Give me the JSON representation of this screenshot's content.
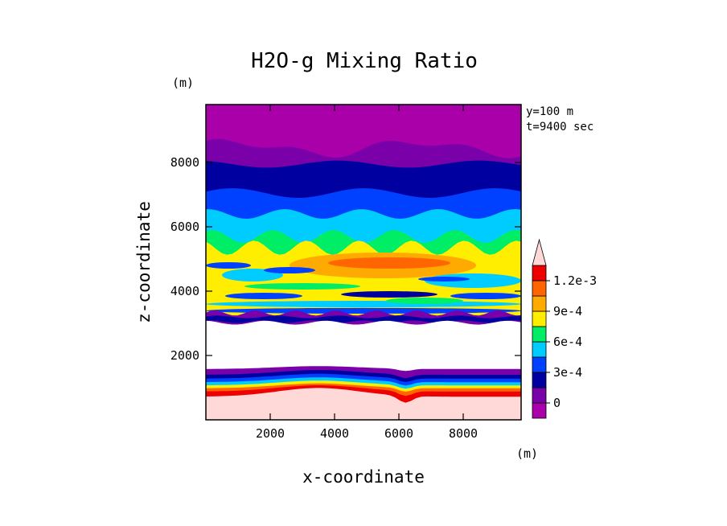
{
  "chart_data": {
    "type": "heatmap",
    "title": "H2O-g Mixing Ratio",
    "xlabel": "x-coordinate",
    "ylabel": "z-coordinate",
    "x_unit": "(m)",
    "y_unit": "(m)",
    "annotations": [
      "y=100 m",
      "t=9400 sec"
    ],
    "xlim": [
      0,
      9800
    ],
    "ylim": [
      0,
      9800
    ],
    "x_ticks": [
      2000,
      4000,
      6000,
      8000
    ],
    "x_tick_labels": [
      "2000",
      "4000",
      "6000",
      "8000"
    ],
    "y_ticks": [
      2000,
      4000,
      6000,
      8000
    ],
    "y_tick_labels": [
      "2000",
      "4000",
      "6000",
      "8000"
    ],
    "colorbar": {
      "levels": [
        0,
        0.00015,
        0.0003,
        0.00045,
        0.0006,
        0.00075,
        0.0009,
        0.00105,
        0.0012
      ],
      "colors": [
        "#aa00aa",
        "#7a00aa",
        "#0000a0",
        "#0040ff",
        "#00ccff",
        "#00ee66",
        "#ffee00",
        "#ffaa00",
        "#ff6600",
        "#ee0000",
        "#ffd8d8"
      ],
      "extend": "max",
      "tick_values": [
        0,
        0.0003,
        0.0006,
        0.0009,
        0.0012
      ],
      "tick_labels": [
        "0",
        "3e-4",
        "6e-4",
        "9e-4",
        "1.2e-3"
      ]
    },
    "regions": [
      {
        "z": [
          8300,
          9800
        ],
        "level": 0,
        "note": "upper layer"
      },
      {
        "z": [
          7900,
          8700
        ],
        "level": 1
      },
      {
        "z": [
          7000,
          8000
        ],
        "level": 2
      },
      {
        "z": [
          6300,
          7000
        ],
        "level": 3
      },
      {
        "z": [
          5500,
          6400
        ],
        "level": 4
      },
      {
        "z": [
          3300,
          5800
        ],
        "level": 6,
        "note": "mixed band"
      },
      {
        "z": [
          3000,
          3300
        ],
        "level": 1
      },
      {
        "z": [
          1500,
          3000
        ],
        "level": "none",
        "note": "blank, no data"
      },
      {
        "z": [
          1350,
          1600
        ],
        "level": 1
      },
      {
        "z": [
          1250,
          1450
        ],
        "level": 2
      },
      {
        "z": [
          700,
          1300
        ],
        "level": 9,
        "note": "red/orange band"
      },
      {
        "z": [
          0,
          800
        ],
        "level": 10
      }
    ]
  }
}
